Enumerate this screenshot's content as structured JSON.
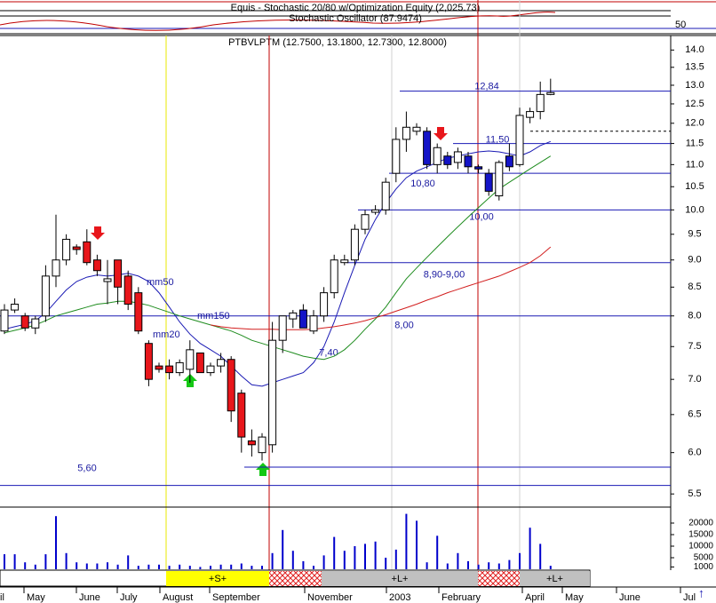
{
  "chart_data": {
    "type": "candlestick",
    "header": "Equis - Stochastic 20/80 w/Optimization Equity (2,025.73)",
    "indicator": "Stochastic Oscillator (87.9474)",
    "indicator_tick": "50",
    "title": "PTBVLPTM (12.7500, 13.1800, 12.7300, 12.8000)",
    "log_scale": true,
    "ylim": [
      5.36,
      14.38
    ],
    "yticks": [
      {
        "value": 5.5,
        "label": "5.5"
      },
      {
        "value": 6,
        "label": "6.0"
      },
      {
        "value": 6.5,
        "label": "6.5"
      },
      {
        "value": 7,
        "label": "7.0"
      },
      {
        "value": 7.5,
        "label": "7.5"
      },
      {
        "value": 8,
        "label": "8.0"
      },
      {
        "value": 8.5,
        "label": "8.5"
      },
      {
        "value": 9,
        "label": "9.0"
      },
      {
        "value": 9.5,
        "label": "9.5"
      },
      {
        "value": 10,
        "label": "10.0"
      },
      {
        "value": 10.5,
        "label": "10.5"
      },
      {
        "value": 11,
        "label": "11.0"
      },
      {
        "value": 11.5,
        "label": "11.5"
      },
      {
        "value": 12,
        "label": "12.0"
      },
      {
        "value": 12.5,
        "label": "12.5"
      },
      {
        "value": 13,
        "label": "13.0"
      },
      {
        "value": 13.5,
        "label": "13.5"
      },
      {
        "value": 14,
        "label": "14.0"
      }
    ],
    "open": [
      7.75,
      8.1,
      8.0,
      7.8,
      8.0,
      8.7,
      9.0,
      9.25,
      9.35,
      9.0,
      8.6,
      9.0,
      8.7,
      8.4,
      7.55,
      7.2,
      7.2,
      7.1,
      7.15,
      7.4,
      7.1,
      7.2,
      7.3,
      6.8,
      6.15,
      6.0,
      6.1,
      7.6,
      7.95,
      8.1,
      7.75,
      8.0,
      8.4,
      8.95,
      9.0,
      9.6,
      9.95,
      10.0,
      10.8,
      11.6,
      11.8,
      11.8,
      11.0,
      11.2,
      11.05,
      11.2,
      10.95,
      10.8,
      10.3,
      11.2,
      11.0,
      12.15,
      12.3,
      12.75
    ],
    "high": [
      8.2,
      8.3,
      8.05,
      8.0,
      8.9,
      9.9,
      9.5,
      9.3,
      9.6,
      9.1,
      9.0,
      9.0,
      8.8,
      8.5,
      7.6,
      7.25,
      7.3,
      7.3,
      7.6,
      7.4,
      7.25,
      7.4,
      7.35,
      6.85,
      6.3,
      6.25,
      7.9,
      8.0,
      8.1,
      8.2,
      8.1,
      8.5,
      9.1,
      9.1,
      9.7,
      10.0,
      10.1,
      10.7,
      11.9,
      12.3,
      12.0,
      11.9,
      11.5,
      11.3,
      11.4,
      11.3,
      11.0,
      10.9,
      11.1,
      11.5,
      12.4,
      12.4,
      13.1,
      13.18
    ],
    "low": [
      7.7,
      8.05,
      7.75,
      7.7,
      7.9,
      8.5,
      8.9,
      9.1,
      8.9,
      8.7,
      8.2,
      8.2,
      8.1,
      7.7,
      6.9,
      7.1,
      7.0,
      7.05,
      6.95,
      7.1,
      7.05,
      7.1,
      6.4,
      6.0,
      5.95,
      5.9,
      6.0,
      7.4,
      7.8,
      7.8,
      7.7,
      7.9,
      8.3,
      8.9,
      8.9,
      9.5,
      9.9,
      9.9,
      10.6,
      11.3,
      11.7,
      10.9,
      10.8,
      10.9,
      10.9,
      10.8,
      10.8,
      10.3,
      10.2,
      10.85,
      10.95,
      12.0,
      12.1,
      12.73
    ],
    "close": [
      8.1,
      8.2,
      7.8,
      7.95,
      8.7,
      9.0,
      9.4,
      9.2,
      8.95,
      8.8,
      8.65,
      8.5,
      8.2,
      7.75,
      7.0,
      7.15,
      7.1,
      7.25,
      7.45,
      7.1,
      7.2,
      7.3,
      6.55,
      6.2,
      6.1,
      6.2,
      7.6,
      8.0,
      8.05,
      7.8,
      8.0,
      8.4,
      9.0,
      9.0,
      9.6,
      9.9,
      10.0,
      10.6,
      11.6,
      11.9,
      11.9,
      11.0,
      11.4,
      11.0,
      11.3,
      10.95,
      10.9,
      10.4,
      11.05,
      10.95,
      12.2,
      12.3,
      12.75,
      12.8
    ],
    "fills": [
      "#fff",
      "#fff",
      "#e8161b",
      "#fff",
      "#fff",
      "#fff",
      "#fff",
      "#e8161b",
      "#e8161b",
      "#e8161b",
      "#fff",
      "#e8161b",
      "#e8161b",
      "#e8161b",
      "#e8161b",
      "#e8161b",
      "#e8161b",
      "#fff",
      "#fff",
      "#e8161b",
      "#fff",
      "#fff",
      "#e8161b",
      "#e8161b",
      "#e8161b",
      "#fff",
      "#fff",
      "#fff",
      "#fff",
      "#1414c8",
      "#fff",
      "#fff",
      "#fff",
      "#fff",
      "#fff",
      "#fff",
      "#fff",
      "#fff",
      "#fff",
      "#fff",
      "#fff",
      "#1414c8",
      "#fff",
      "#1414c8",
      "#fff",
      "#1414c8",
      "#1414c8",
      "#1414c8",
      "#fff",
      "#1414c8",
      "#fff",
      "#fff",
      "#fff",
      "#fff"
    ],
    "series": [
      {
        "name": "mm50",
        "color": "#1a1ab4",
        "values": [
          7.78,
          7.82,
          7.86,
          7.92,
          8.05,
          8.25,
          8.45,
          8.6,
          8.68,
          8.72,
          8.7,
          8.72,
          8.75,
          8.7,
          8.6,
          8.4,
          8.15,
          7.9,
          7.7,
          7.55,
          7.45,
          7.35,
          7.2,
          7.05,
          6.92,
          6.9,
          6.95,
          7.0,
          7.05,
          7.1,
          7.25,
          7.5,
          7.9,
          8.4,
          8.9,
          9.4,
          9.8,
          10.15,
          10.45,
          10.7,
          10.85,
          10.95,
          11.05,
          11.15,
          11.2,
          11.25,
          11.3,
          11.32,
          11.3,
          11.25,
          11.2,
          11.3,
          11.45,
          11.55
        ]
      },
      {
        "name": "mm150",
        "color": "#1e8c1e",
        "values": [
          7.72,
          7.76,
          7.8,
          7.85,
          7.92,
          8.0,
          8.05,
          8.1,
          8.15,
          8.2,
          8.22,
          8.25,
          8.25,
          8.22,
          8.18,
          8.12,
          8.06,
          8.0,
          7.95,
          7.9,
          7.85,
          7.8,
          7.75,
          7.68,
          7.6,
          7.55,
          7.5,
          7.45,
          7.4,
          7.35,
          7.32,
          7.3,
          7.35,
          7.45,
          7.6,
          7.78,
          7.95,
          8.15,
          8.4,
          8.65,
          8.85,
          9.05,
          9.25,
          9.45,
          9.65,
          9.85,
          10.05,
          10.25,
          10.45,
          10.6,
          10.75,
          10.9,
          11.05,
          11.2
        ]
      },
      {
        "name": "mm20",
        "color": "#d21e1e",
        "values": [
          null,
          null,
          null,
          null,
          null,
          null,
          null,
          null,
          null,
          null,
          null,
          null,
          null,
          null,
          null,
          null,
          null,
          null,
          null,
          null,
          7.85,
          7.82,
          7.8,
          7.79,
          7.78,
          7.78,
          7.78,
          7.77,
          7.77,
          7.77,
          7.78,
          7.8,
          7.82,
          7.85,
          7.88,
          7.92,
          7.97,
          8.02,
          8.08,
          8.14,
          8.2,
          8.27,
          8.33,
          8.4,
          8.46,
          8.52,
          8.58,
          8.64,
          8.7,
          8.78,
          8.86,
          8.95,
          9.08,
          9.25
        ]
      }
    ],
    "levels": [
      {
        "value": 12.84,
        "label": "12,84"
      },
      {
        "value": 11.5,
        "label": "11,50"
      },
      {
        "value": 10.8,
        "label": "10,80"
      },
      {
        "value": 10.0,
        "label": "10,00"
      },
      {
        "value": 8.95,
        "label": "8,90-9,00"
      },
      {
        "value": 8.0,
        "label": "8,00"
      },
      {
        "value": 5.6,
        "label": "5,60"
      }
    ],
    "lines": [
      5.82,
      11.8
    ],
    "annotations": [
      {
        "value": 7.4,
        "label": "7,40"
      }
    ],
    "volume": {
      "color": "#0000cc",
      "ylim": [
        0,
        25000
      ],
      "yticks": [
        20000,
        15000,
        10000,
        5000,
        1000
      ],
      "values": [
        6500,
        6500,
        3000,
        2000,
        6500,
        23000,
        7000,
        3000,
        2500,
        2500,
        3000,
        2000,
        6000,
        1500,
        2000,
        2000,
        1500,
        2000,
        1500,
        1000,
        1500,
        2000,
        2000,
        2500,
        1500,
        1500,
        7000,
        17000,
        8000,
        3500,
        1500,
        6000,
        14000,
        8000,
        10000,
        11000,
        12000,
        5000,
        8500,
        24000,
        21000,
        3000,
        14500,
        2500,
        7000,
        3500,
        2000,
        3000,
        2500,
        4000,
        7000,
        18000,
        11000,
        1500
      ]
    },
    "x_labels": [
      "il",
      "May",
      "June",
      "July",
      "August",
      "September",
      "November",
      "2003",
      "February",
      "April",
      "May",
      "June",
      "Jul"
    ],
    "signals": [
      {
        "label": "+S+",
        "color": "#ffff00"
      },
      {
        "label": "+L+",
        "color": "#c0c0c0"
      },
      {
        "label": "+L+",
        "color": "#c0c0c0"
      }
    ]
  }
}
